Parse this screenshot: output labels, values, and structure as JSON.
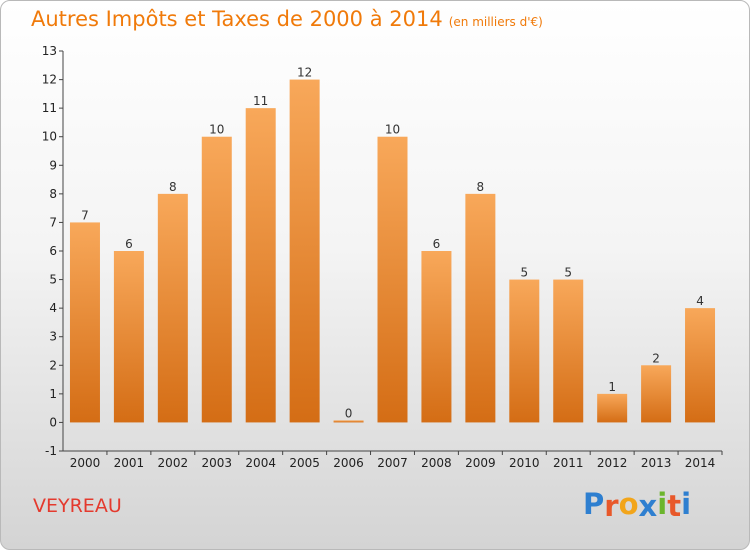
{
  "header": {
    "title": "Autres Impôts et Taxes de 2000 à 2014",
    "unit": "(en milliers d'€)"
  },
  "footer": {
    "place": "VEYREAU",
    "logo": "Proxiti"
  },
  "colors": {
    "title": "#f07a0a",
    "place": "#e43a2e",
    "bar_light": "#f8a85a",
    "bar_dark": "#d46d15",
    "logo": [
      "#2e7fd0",
      "#e8582a",
      "#f2a51a",
      "#2e7fd0",
      "#6bb52c",
      "#e8582a",
      "#2e7fd0"
    ]
  },
  "chart_data": {
    "type": "bar",
    "title": "Autres Impôts et Taxes de 2000 à 2014",
    "subtitle": "(en milliers d'€)",
    "categories": [
      "2000",
      "2001",
      "2002",
      "2003",
      "2004",
      "2005",
      "2006",
      "2007",
      "2008",
      "2009",
      "2010",
      "2011",
      "2012",
      "2013",
      "2014"
    ],
    "values": [
      7,
      6,
      8,
      10,
      11,
      12,
      0,
      10,
      6,
      8,
      5,
      5,
      1,
      2,
      4
    ],
    "ylim": [
      -1,
      13
    ],
    "yticks": [
      -1,
      0,
      1,
      2,
      3,
      4,
      5,
      6,
      7,
      8,
      9,
      10,
      11,
      12,
      13
    ],
    "grid": false,
    "legend": "none"
  }
}
